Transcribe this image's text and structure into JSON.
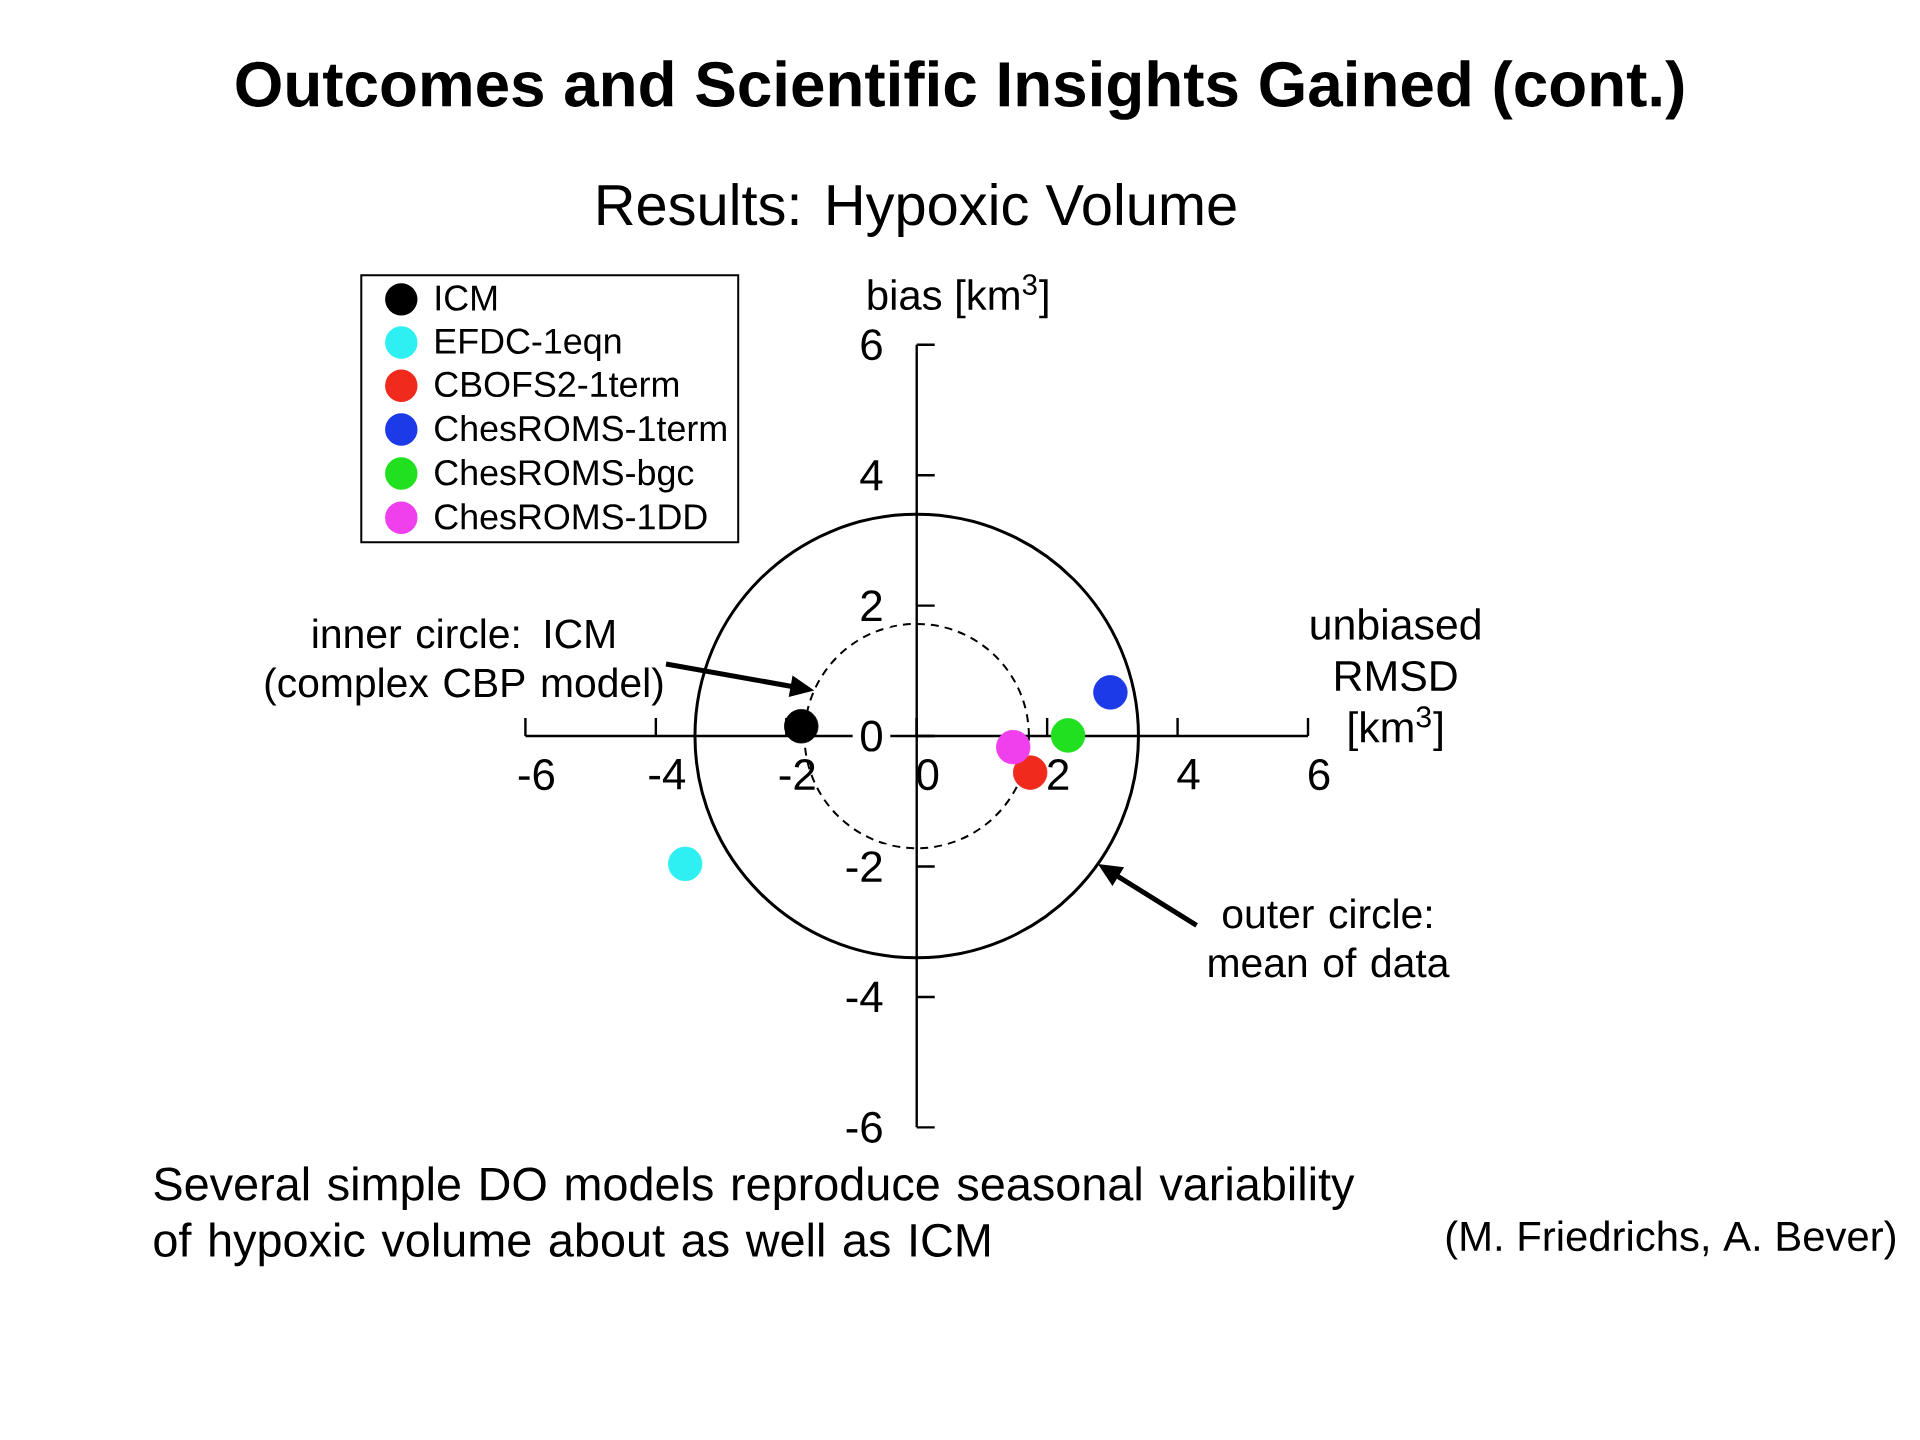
{
  "chart_data": {
    "type": "scatter",
    "title": "Outcomes and Scientific Insights Gained (cont.)",
    "subtitle": "Results: Hypoxic Volume",
    "xlabel": "unbiased RMSD [km$^{3}$]",
    "ylabel": "bias [km$^{3}$]",
    "xlim": [
      -6,
      6
    ],
    "ylim": [
      -6,
      6
    ],
    "xticks": [
      -6,
      -4,
      -2,
      0,
      2,
      4,
      6
    ],
    "yticks": [
      -6,
      -4,
      -2,
      0,
      2,
      4,
      6
    ],
    "legend": "top left",
    "series": [
      {
        "name": "ICM",
        "color": "#000000",
        "x": [
          -1.77
        ],
        "values": [
          0.15
        ]
      },
      {
        "name": "EFDC-1eqn",
        "color": "#2ef0f2",
        "x": [
          -3.55
        ],
        "values": [
          -1.96
        ]
      },
      {
        "name": "CBOFS2-1term",
        "color": "#f02a1c",
        "x": [
          1.74
        ],
        "values": [
          -0.56
        ]
      },
      {
        "name": "ChesROMS-1term",
        "color": "#1c3ae8",
        "x": [
          2.97
        ],
        "values": [
          0.67
        ]
      },
      {
        "name": "ChesROMS-bgc",
        "color": "#20e020",
        "x": [
          2.32
        ],
        "values": [
          0.01
        ]
      },
      {
        "name": "ChesROMS-1DD",
        "color": "#f040ee",
        "x": [
          1.48
        ],
        "values": [
          -0.17
        ]
      }
    ],
    "annotations": [
      "inner circle: ICM (complex CBP model)",
      "outer circle: mean of data",
      "Several simple DO models reproduce seasonal variability of hypoxic volume about as well as ICM",
      "(M. Friedrichs, A. Bever)"
    ]
  }
}
